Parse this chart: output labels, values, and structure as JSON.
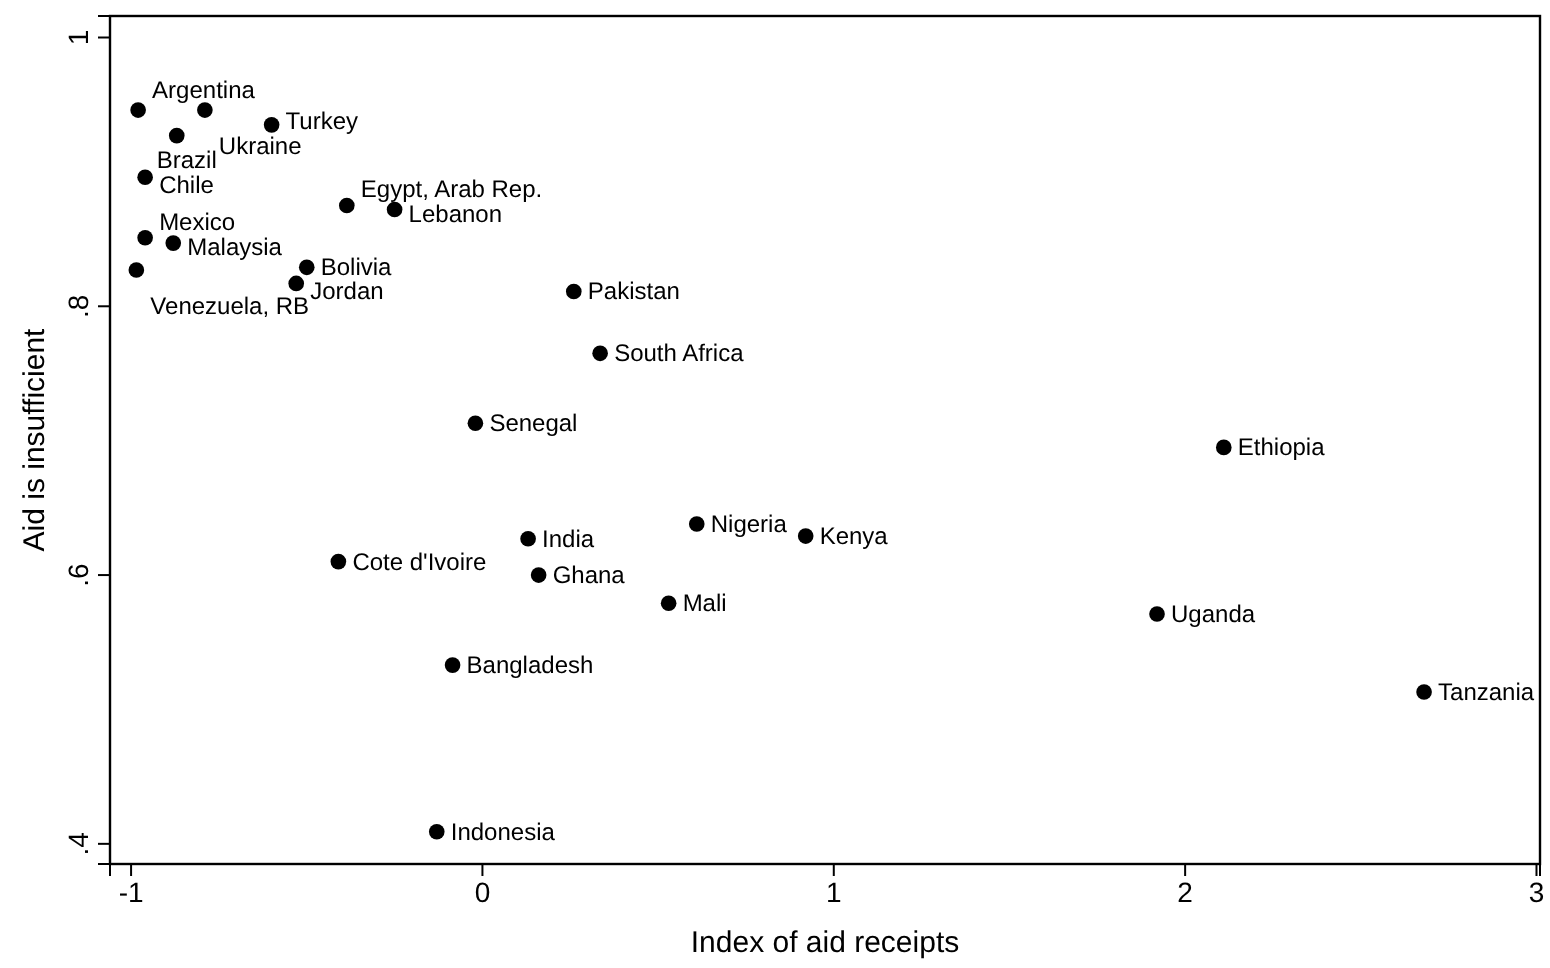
{
  "chart_data": {
    "type": "scatter",
    "xlabel": "Index of aid receipts",
    "ylabel": "Aid is insufficient",
    "xlim": [
      -1.06,
      3.01
    ],
    "ylim": [
      0.385,
      1.016
    ],
    "xticks": [
      -1,
      0,
      1,
      2,
      3
    ],
    "yticks": [
      {
        "value": 0.4,
        "label": ".4"
      },
      {
        "value": 0.6,
        "label": ".6"
      },
      {
        "value": 0.8,
        "label": ".8"
      },
      {
        "value": 1,
        "label": "1"
      }
    ],
    "grid": false,
    "marker": "circle",
    "series": [
      {
        "color": "#000000",
        "x": [
          -0.98,
          -0.79,
          -0.87,
          -0.6,
          -0.96,
          -0.386,
          -0.25,
          -0.96,
          -0.88,
          -0.985,
          -0.5,
          -0.53,
          0.26,
          0.335,
          -0.02,
          2.11,
          0.61,
          0.92,
          0.13,
          -0.41,
          0.16,
          0.53,
          1.92,
          -0.085,
          2.68,
          -0.13
        ],
        "values": [
          0.946,
          0.946,
          0.927,
          0.935,
          0.896,
          0.875,
          0.872,
          0.851,
          0.847,
          0.827,
          0.829,
          0.817,
          0.811,
          0.765,
          0.713,
          0.695,
          0.638,
          0.629,
          0.627,
          0.61,
          0.6,
          0.579,
          0.571,
          0.533,
          0.513,
          0.409
        ]
      }
    ],
    "annotations": [
      {
        "text": "Argentina",
        "x": -0.98,
        "y": 0.946
      },
      {
        "text": "Ukraine",
        "x": -0.79,
        "y": 0.946
      },
      {
        "text": "Brazil",
        "x": -0.87,
        "y": 0.927
      },
      {
        "text": "Turkey",
        "x": -0.6,
        "y": 0.935
      },
      {
        "text": "Chile",
        "x": -0.96,
        "y": 0.896
      },
      {
        "text": "Egypt, Arab Rep.",
        "x": -0.386,
        "y": 0.875
      },
      {
        "text": "Lebanon",
        "x": -0.25,
        "y": 0.872
      },
      {
        "text": "Mexico",
        "x": -0.96,
        "y": 0.851
      },
      {
        "text": "Malaysia",
        "x": -0.88,
        "y": 0.847
      },
      {
        "text": "Venezuela, RB",
        "x": -0.985,
        "y": 0.827
      },
      {
        "text": "Bolivia",
        "x": -0.5,
        "y": 0.829
      },
      {
        "text": "Jordan",
        "x": -0.53,
        "y": 0.817
      },
      {
        "text": "Pakistan",
        "x": 0.26,
        "y": 0.811
      },
      {
        "text": "South Africa",
        "x": 0.335,
        "y": 0.765
      },
      {
        "text": "Senegal",
        "x": -0.02,
        "y": 0.713
      },
      {
        "text": "Ethiopia",
        "x": 2.11,
        "y": 0.695
      },
      {
        "text": "Nigeria",
        "x": 0.61,
        "y": 0.638
      },
      {
        "text": "Kenya",
        "x": 0.92,
        "y": 0.629
      },
      {
        "text": "India",
        "x": 0.13,
        "y": 0.627
      },
      {
        "text": "Cote d'Ivoire",
        "x": -0.41,
        "y": 0.61
      },
      {
        "text": "Ghana",
        "x": 0.16,
        "y": 0.6
      },
      {
        "text": "Mali",
        "x": 0.53,
        "y": 0.579
      },
      {
        "text": "Uganda",
        "x": 1.92,
        "y": 0.571
      },
      {
        "text": "Bangladesh",
        "x": -0.085,
        "y": 0.533
      },
      {
        "text": "Tanzania",
        "x": 2.68,
        "y": 0.513
      },
      {
        "text": "Indonesia",
        "x": -0.13,
        "y": 0.409
      }
    ]
  }
}
